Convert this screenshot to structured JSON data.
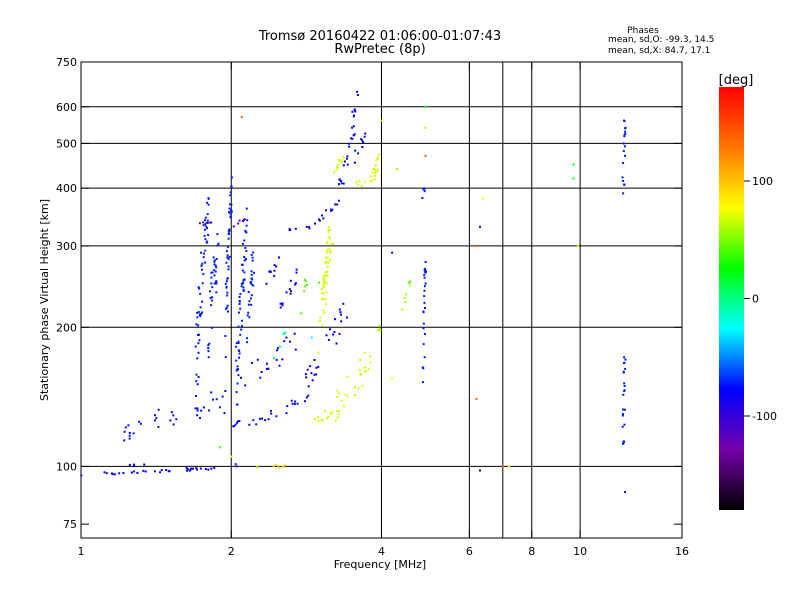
{
  "chart_data": {
    "type": "scatter",
    "title": "Tromsø 20160422 01:06:00-01:07:43",
    "subtitle": "RwPretec (8p)",
    "xlabel": "Frequency [MHz]",
    "ylabel": "Stationary phase Virtual Height [km]",
    "x_scale": "log",
    "y_scale": "log",
    "xlim": [
      1,
      16
    ],
    "ylim": [
      70,
      750
    ],
    "x_ticks": [
      1,
      2,
      4,
      6,
      8,
      10,
      16
    ],
    "y_ticks": [
      75,
      100,
      200,
      300,
      400,
      500,
      600,
      750
    ],
    "x_gridlines": [
      2,
      4,
      6,
      7,
      8,
      10
    ],
    "y_gridlines": [
      100,
      200,
      300,
      400,
      500,
      600
    ],
    "grid": true,
    "phase_info": {
      "heading": "Phases",
      "line_o": "mean, sd,O:  -99.3, 14.5",
      "line_x": "mean, sd,X:  84.7, 17.1"
    },
    "colorbar": {
      "label": "[deg]",
      "range": [
        -180,
        180
      ],
      "ticks": [
        100,
        0,
        -100
      ],
      "colors": [
        "#ff0000",
        "#ff7700",
        "#ffff00",
        "#00ff00",
        "#00ffff",
        "#0000ff",
        "#7700aa",
        "#000000"
      ]
    },
    "series": [
      {
        "type": "segments",
        "color_phase": -110,
        "density": 14,
        "segments": [
          [
            1.0,
            96,
            1.85,
            99,
            0.8
          ],
          [
            1.25,
            100,
            1.35,
            101,
            0.8
          ]
        ]
      },
      {
        "type": "segments",
        "color_phase": 110,
        "density": 14,
        "segments": [
          [
            2.25,
            100,
            2.62,
            100,
            1.0
          ]
        ]
      },
      {
        "type": "segments",
        "color_phase": -105,
        "density": 14,
        "segments": [
          [
            1.2,
            117,
            1.35,
            128,
            6
          ],
          [
            1.35,
            125,
            1.6,
            130,
            6
          ],
          [
            1.6,
            130,
            1.95,
            140,
            10
          ],
          [
            1.95,
            123,
            2.35,
            126,
            2
          ],
          [
            2.35,
            128,
            2.85,
            140,
            4
          ]
        ]
      },
      {
        "type": "segments",
        "color_phase": -100,
        "density": 20,
        "segments": [
          [
            1.7,
            160,
            1.8,
            360,
            40
          ],
          [
            1.8,
            190,
            1.88,
            300,
            35
          ],
          [
            1.95,
            200,
            2.0,
            400,
            30
          ],
          [
            2.05,
            140,
            2.15,
            330,
            40
          ],
          [
            2.15,
            200,
            2.22,
            280,
            25
          ]
        ]
      },
      {
        "type": "segments",
        "color_phase": -130,
        "density": 14,
        "segments": [
          [
            1.72,
            332,
            1.9,
            340,
            4
          ],
          [
            2.0,
            330,
            2.15,
            345,
            4
          ]
        ]
      },
      {
        "type": "segments",
        "color_phase": -110,
        "density": 14,
        "segments": [
          [
            2.1,
            155,
            2.4,
            165,
            12
          ],
          [
            2.4,
            170,
            2.7,
            185,
            12
          ],
          [
            2.5,
            220,
            2.75,
            260,
            14
          ],
          [
            2.35,
            245,
            2.5,
            280,
            10
          ],
          [
            2.6,
            326,
            2.95,
            330,
            2
          ],
          [
            2.95,
            335,
            3.3,
            380,
            6
          ],
          [
            3.3,
            400,
            3.55,
            550,
            20
          ],
          [
            3.5,
            560,
            3.6,
            640,
            20
          ],
          [
            3.5,
            460,
            3.7,
            520,
            15
          ],
          [
            2.8,
            150,
            3.1,
            175,
            8
          ],
          [
            3.1,
            180,
            3.4,
            220,
            15
          ]
        ]
      },
      {
        "type": "segments",
        "color_phase": 80,
        "density": 20,
        "segments": [
          [
            3.0,
            200,
            3.2,
            300,
            25
          ],
          [
            2.95,
            125,
            3.2,
            132,
            3
          ],
          [
            3.2,
            132,
            3.8,
            170,
            12
          ],
          [
            3.55,
            405,
            3.95,
            430,
            10
          ],
          [
            3.85,
            430,
            4.0,
            480,
            10
          ],
          [
            3.2,
            420,
            3.35,
            470,
            10
          ],
          [
            3.05,
            230,
            3.15,
            330,
            10
          ]
        ]
      },
      {
        "type": "segments",
        "color_phase": 60,
        "density": 10,
        "segments": [
          [
            4.4,
            220,
            4.6,
            250,
            5
          ],
          [
            3.9,
            190,
            4.0,
            205,
            5
          ]
        ]
      },
      {
        "type": "segments",
        "color_phase": 25,
        "density": 8,
        "segments": [
          [
            2.75,
            220,
            2.85,
            260,
            10
          ]
        ]
      },
      {
        "type": "segments",
        "color_phase": -20,
        "density": 6,
        "segments": [
          [
            2.4,
            170,
            2.6,
            200,
            8
          ]
        ]
      },
      {
        "type": "segments",
        "color_phase": -100,
        "density": 12,
        "segments": [
          [
            4.85,
            150,
            4.9,
            280,
            0.5
          ],
          [
            4.85,
            380,
            4.9,
            410,
            0.5
          ],
          [
            12.2,
            390,
            12.3,
            580,
            0.5
          ],
          [
            12.2,
            105,
            12.3,
            180,
            0.5
          ]
        ]
      },
      {
        "type": "points",
        "points": [
          [
            2.1,
            570,
            150
          ],
          [
            4.0,
            560,
            110
          ],
          [
            4.9,
            600,
            0
          ],
          [
            4.9,
            540,
            60
          ],
          [
            4.9,
            470,
            150
          ],
          [
            6.4,
            380,
            90
          ],
          [
            6.2,
            300,
            150
          ],
          [
            6.3,
            330,
            -120
          ],
          [
            6.2,
            140,
            150
          ],
          [
            6.3,
            98,
            -120
          ],
          [
            7.0,
            100,
            150
          ],
          [
            7.2,
            100,
            90
          ],
          [
            9.7,
            450,
            0
          ],
          [
            9.7,
            420,
            0
          ],
          [
            9.9,
            300,
            90
          ],
          [
            12.3,
            530,
            -100
          ],
          [
            12.3,
            470,
            -100
          ],
          [
            12.3,
            88,
            -130
          ],
          [
            4.2,
            290,
            -110
          ],
          [
            4.3,
            440,
            60
          ],
          [
            1.9,
            110,
            20
          ],
          [
            2.0,
            105,
            100
          ],
          [
            2.05,
            100,
            -100
          ],
          [
            4.55,
            250,
            0
          ],
          [
            4.2,
            155,
            100
          ],
          [
            3.0,
            250,
            20
          ],
          [
            2.9,
            190,
            -40
          ]
        ]
      }
    ]
  }
}
